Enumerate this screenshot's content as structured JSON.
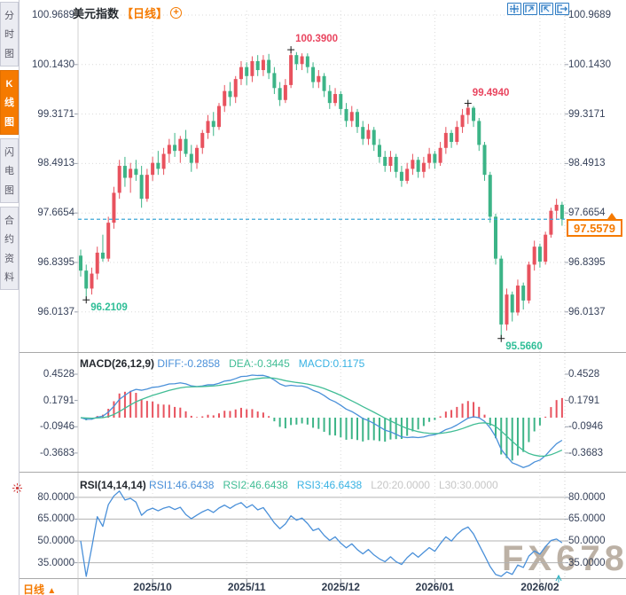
{
  "header": {
    "title": "美元指数",
    "period_tag": "【日线】",
    "add_icon": "+"
  },
  "sidebar": {
    "items": [
      {
        "label": "分时图",
        "active": false
      },
      {
        "label": "K线图",
        "active": true
      },
      {
        "label": "闪电图",
        "active": false
      },
      {
        "label": "合约资料",
        "active": false
      }
    ]
  },
  "toolbar": {
    "icons": [
      "crosshair",
      "zoom-area",
      "restore-zoom",
      "pop-out"
    ]
  },
  "price_box": {
    "value": "97.5579"
  },
  "footer": {
    "period_label": "日线",
    "period_arrow": "▲"
  },
  "watermark": "FX678",
  "colors": {
    "up": "#e8525e",
    "down": "#3cb487",
    "accent_orange": "#f57a00",
    "line_blue": "#4a90d9",
    "line_green": "#41bd95",
    "line_cyan": "#38b2e3",
    "annotation_red": "#e9455f",
    "annotation_green": "#2fbe97",
    "dashed_price_line": "#3fa8d8",
    "grid": "#d9d9d9",
    "rsi_grid": "#b3b3b3",
    "axis_text": "#37425a",
    "gray_label": "#c6c6c6",
    "marker": "#1a1a1a",
    "separator": "#a9a9a9"
  },
  "chart_data": [
    {
      "type": "candlestick",
      "title": "美元指数 日线",
      "y_ticks": [
        "100.9689",
        "100.1430",
        "99.3171",
        "98.4913",
        "97.6654",
        "96.8395",
        "96.0137"
      ],
      "ylim": [
        95.4,
        101.25
      ],
      "x_tick_labels": [
        "2025/10",
        "2025/11",
        "2025/12",
        "2026/01",
        "2026/02"
      ],
      "x_tick_candle_index": [
        13,
        30,
        47,
        64,
        83
      ],
      "last_price": 97.5579,
      "annotations": [
        {
          "index": 38,
          "at": "high",
          "text": "100.3900",
          "color": "#e9455f"
        },
        {
          "index": 70,
          "at": "high",
          "text": "99.4940",
          "color": "#e9455f"
        },
        {
          "index": 1,
          "at": "low",
          "text": "96.2109",
          "color": "#2fbe97"
        },
        {
          "index": 76,
          "at": "low",
          "text": "95.5660",
          "color": "#2fbe97"
        }
      ],
      "candles_ohlc": [
        [
          96.95,
          97.05,
          96.6,
          96.7
        ],
        [
          96.7,
          96.8,
          96.2109,
          96.4
        ],
        [
          96.4,
          96.75,
          96.3,
          96.65
        ],
        [
          96.65,
          97.1,
          96.55,
          97.0
        ],
        [
          97.0,
          97.3,
          96.85,
          96.9
        ],
        [
          96.9,
          97.6,
          96.85,
          97.5
        ],
        [
          97.5,
          98.1,
          97.4,
          98.0
        ],
        [
          98.0,
          98.55,
          97.9,
          98.45
        ],
        [
          98.45,
          98.6,
          98.1,
          98.25
        ],
        [
          98.25,
          98.5,
          98.0,
          98.4
        ],
        [
          98.4,
          98.55,
          98.2,
          98.3
        ],
        [
          98.3,
          98.45,
          97.75,
          97.9
        ],
        [
          97.9,
          98.4,
          97.85,
          98.3
        ],
        [
          98.3,
          98.6,
          98.2,
          98.5
        ],
        [
          98.5,
          98.7,
          98.3,
          98.4
        ],
        [
          98.4,
          98.75,
          98.3,
          98.65
        ],
        [
          98.65,
          98.9,
          98.5,
          98.8
        ],
        [
          98.8,
          99.0,
          98.6,
          98.7
        ],
        [
          98.7,
          98.95,
          98.5,
          98.9
        ],
        [
          98.9,
          99.05,
          98.6,
          98.65
        ],
        [
          98.65,
          98.8,
          98.35,
          98.5
        ],
        [
          98.5,
          98.8,
          98.4,
          98.75
        ],
        [
          98.75,
          99.05,
          98.65,
          99.0
        ],
        [
          99.0,
          99.3,
          98.9,
          99.2
        ],
        [
          99.2,
          99.35,
          98.95,
          99.1
        ],
        [
          99.1,
          99.5,
          99.05,
          99.45
        ],
        [
          99.45,
          99.8,
          99.35,
          99.7
        ],
        [
          99.7,
          99.85,
          99.45,
          99.6
        ],
        [
          99.6,
          99.95,
          99.5,
          99.9
        ],
        [
          99.9,
          100.2,
          99.8,
          100.1
        ],
        [
          100.1,
          100.18,
          99.8,
          99.95
        ],
        [
          99.95,
          100.28,
          99.85,
          100.2
        ],
        [
          100.2,
          100.3,
          99.95,
          100.05
        ],
        [
          100.05,
          100.3,
          99.95,
          100.22
        ],
        [
          100.22,
          100.32,
          99.9,
          100.0
        ],
        [
          100.0,
          100.1,
          99.65,
          99.75
        ],
        [
          99.75,
          99.85,
          99.45,
          99.55
        ],
        [
          99.55,
          99.9,
          99.5,
          99.8
        ],
        [
          99.8,
          100.39,
          99.75,
          100.3
        ],
        [
          100.3,
          100.35,
          100.05,
          100.15
        ],
        [
          100.15,
          100.33,
          100.05,
          100.28
        ],
        [
          100.28,
          100.33,
          100.0,
          100.1
        ],
        [
          100.1,
          100.18,
          99.75,
          99.85
        ],
        [
          99.85,
          100.05,
          99.75,
          99.95
        ],
        [
          99.95,
          100.0,
          99.6,
          99.7
        ],
        [
          99.7,
          99.8,
          99.4,
          99.5
        ],
        [
          99.5,
          99.75,
          99.45,
          99.65
        ],
        [
          99.65,
          99.7,
          99.3,
          99.4
        ],
        [
          99.4,
          99.5,
          99.1,
          99.2
        ],
        [
          99.2,
          99.45,
          99.1,
          99.35
        ],
        [
          99.35,
          99.4,
          99.0,
          99.1
        ],
        [
          99.1,
          99.2,
          98.8,
          98.9
        ],
        [
          98.9,
          99.15,
          98.8,
          99.05
        ],
        [
          99.05,
          99.1,
          98.7,
          98.8
        ],
        [
          98.8,
          98.9,
          98.5,
          98.6
        ],
        [
          98.6,
          98.7,
          98.35,
          98.45
        ],
        [
          98.45,
          98.7,
          98.35,
          98.6
        ],
        [
          98.6,
          98.65,
          98.25,
          98.35
        ],
        [
          98.35,
          98.45,
          98.1,
          98.2
        ],
        [
          98.2,
          98.5,
          98.15,
          98.4
        ],
        [
          98.4,
          98.65,
          98.3,
          98.55
        ],
        [
          98.55,
          98.6,
          98.25,
          98.35
        ],
        [
          98.35,
          98.6,
          98.25,
          98.5
        ],
        [
          98.5,
          98.75,
          98.4,
          98.65
        ],
        [
          98.65,
          98.7,
          98.4,
          98.5
        ],
        [
          98.5,
          98.85,
          98.45,
          98.75
        ],
        [
          98.75,
          99.1,
          98.65,
          99.0
        ],
        [
          99.0,
          99.05,
          98.75,
          98.85
        ],
        [
          98.85,
          99.2,
          98.8,
          99.1
        ],
        [
          99.1,
          99.4,
          99.0,
          99.3
        ],
        [
          99.3,
          99.494,
          99.15,
          99.42
        ],
        [
          99.42,
          99.45,
          99.1,
          99.2
        ],
        [
          99.2,
          99.25,
          98.7,
          98.8
        ],
        [
          98.8,
          98.85,
          98.2,
          98.3
        ],
        [
          98.3,
          98.35,
          97.5,
          97.6
        ],
        [
          97.6,
          97.65,
          96.8,
          96.9
        ],
        [
          96.9,
          96.95,
          95.566,
          95.8
        ],
        [
          95.8,
          96.4,
          95.7,
          96.3
        ],
        [
          96.3,
          96.35,
          95.85,
          96.0
        ],
        [
          96.0,
          96.55,
          95.95,
          96.45
        ],
        [
          96.45,
          96.5,
          96.05,
          96.2
        ],
        [
          96.2,
          96.85,
          96.15,
          96.8
        ],
        [
          96.8,
          97.2,
          96.7,
          97.1
        ],
        [
          97.1,
          97.15,
          96.75,
          96.85
        ],
        [
          96.85,
          97.35,
          96.8,
          97.3
        ],
        [
          97.3,
          97.75,
          97.25,
          97.7
        ],
        [
          97.7,
          97.9,
          97.55,
          97.8
        ],
        [
          97.8,
          97.85,
          97.45,
          97.5579
        ]
      ]
    },
    {
      "type": "macd",
      "label": "MACD(26,12,9)",
      "legend": [
        {
          "text": "DIFF:-0.2858",
          "color": "#4a90d9"
        },
        {
          "text": "DEA:-0.3445",
          "color": "#41bd95"
        },
        {
          "text": "MACD:0.1175",
          "color": "#38b2e3"
        }
      ],
      "y_ticks": [
        "0.4528",
        "0.1791",
        "-0.0946",
        "-0.3683"
      ],
      "note": "series derived from candle closes: DIFF=EMA12-EMA26, DEA=EMA9(DIFF), bars=2*(DIFF-DEA); red above 0, green below 0"
    },
    {
      "type": "rsi",
      "label": "RSI(14,14,14)",
      "legend": [
        {
          "text": "RSI1:46.6438",
          "color": "#4a90d9"
        },
        {
          "text": "RSI2:46.6438",
          "color": "#41bd95"
        },
        {
          "text": "RSI3:46.6438",
          "color": "#38b2e3"
        },
        {
          "text": "L20:20.0000",
          "color": "#c6c6c6"
        },
        {
          "text": "L30:30.0000",
          "color": "#c6c6c6"
        }
      ],
      "y_ticks": [
        "80.0000",
        "65.0000",
        "50.0000",
        "35.0000"
      ],
      "gridline_values": [
        80,
        65,
        50,
        35
      ],
      "note": "three RSI lines share period 14 so they overlap as one blue line"
    }
  ]
}
